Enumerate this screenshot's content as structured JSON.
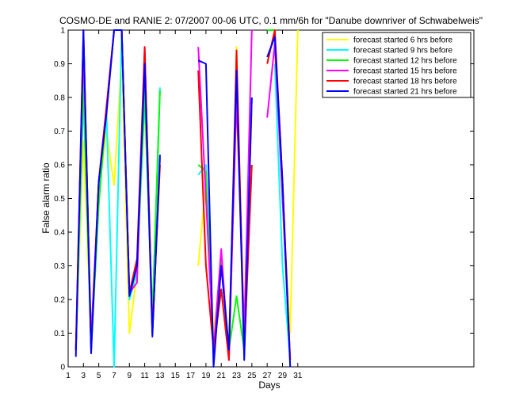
{
  "chart_data": {
    "type": "line",
    "title": "COSMO-DE and RANIE 2: 07/2007 00-06 UTC, 0.1 mm/6h for \"Danube downriver of Schwabelweis\"",
    "xlabel": "Days",
    "ylabel": "False alarm ratio",
    "xlim": [
      1,
      54
    ],
    "ylim": [
      0,
      1
    ],
    "xticks": [
      1,
      3,
      5,
      7,
      9,
      11,
      13,
      15,
      17,
      19,
      21,
      23,
      25,
      27,
      29,
      31
    ],
    "yticks": [
      0,
      0.1,
      0.2,
      0.3,
      0.4,
      0.5,
      0.6,
      0.7,
      0.8,
      0.9,
      1
    ],
    "grid": false,
    "legend_position": "top-right",
    "series": [
      {
        "name": "forecast started 6 hrs before",
        "color": "#ffff00",
        "x": [
          2,
          3,
          4,
          5,
          6,
          7,
          8,
          9,
          10,
          11,
          12,
          13,
          null,
          18,
          19,
          20,
          21,
          22,
          23,
          24,
          25,
          null,
          29,
          30,
          31
        ],
        "y": [
          0.05,
          0.67,
          0.1,
          0.52,
          0.7,
          0.54,
          0.92,
          0.1,
          0.28,
          0.78,
          0.12,
          0.6,
          null,
          0.3,
          0.55,
          0.1,
          0.32,
          0.05,
          0.95,
          0.08,
          0.75,
          null,
          0.5,
          0.1,
          1.0
        ]
      },
      {
        "name": "forecast started 9 hrs before",
        "color": "#00ffff",
        "x": [
          2,
          3,
          4,
          5,
          6,
          7,
          8,
          9,
          10,
          11,
          12,
          13,
          null,
          18,
          19,
          20,
          21,
          22,
          23,
          24,
          25,
          null,
          28,
          29,
          30
        ],
        "y": [
          0.05,
          0.8,
          0.1,
          0.5,
          0.76,
          0.0,
          1.0,
          0.2,
          0.28,
          0.8,
          0.15,
          0.83,
          null,
          0.57,
          0.6,
          0.05,
          0.3,
          0.05,
          0.9,
          0.07,
          0.8,
          null,
          0.9,
          0.3,
          0.02
        ]
      },
      {
        "name": "forecast started 12 hrs before",
        "color": "#00ff00",
        "x": [
          2,
          3,
          4,
          5,
          6,
          7,
          8,
          9,
          10,
          11,
          12,
          13,
          null,
          18,
          19,
          20,
          21,
          22,
          23,
          24,
          25,
          null,
          27,
          28,
          29,
          30
        ],
        "y": [
          0.05,
          0.85,
          0.05,
          0.48,
          0.76,
          1.0,
          1.0,
          0.22,
          0.3,
          0.82,
          0.15,
          0.82,
          null,
          0.6,
          0.58,
          0.05,
          0.32,
          0.05,
          0.21,
          0.05,
          0.8,
          null,
          1.0,
          1.0,
          0.5,
          0.02
        ]
      },
      {
        "name": "forecast started 15 hrs before",
        "color": "#ff00ff",
        "x": [
          2,
          3,
          4,
          5,
          6,
          7,
          8,
          9,
          10,
          11,
          12,
          13,
          null,
          18,
          19,
          20,
          21,
          22,
          23,
          24,
          25,
          null,
          27,
          28,
          29,
          30
        ],
        "y": [
          0.05,
          0.95,
          0.08,
          0.55,
          0.77,
          1.0,
          1.0,
          0.22,
          0.25,
          0.95,
          0.1,
          0.62,
          null,
          0.95,
          0.5,
          0.05,
          0.35,
          0.02,
          0.8,
          0.1,
          1.0,
          null,
          0.74,
          0.96,
          0.5,
          0.02
        ]
      },
      {
        "name": "forecast started 18 hrs before",
        "color": "#ff0000",
        "x": [
          2,
          3,
          4,
          5,
          6,
          7,
          8,
          9,
          10,
          11,
          12,
          13,
          null,
          18,
          19,
          20,
          21,
          22,
          23,
          24,
          25,
          null,
          27,
          28,
          29,
          30
        ],
        "y": [
          0.05,
          1.0,
          0.05,
          0.55,
          0.77,
          1.0,
          1.0,
          0.22,
          0.32,
          0.95,
          0.1,
          0.6,
          null,
          0.88,
          0.3,
          0.05,
          0.23,
          0.02,
          0.94,
          0.04,
          0.6,
          null,
          0.9,
          1.0,
          0.55,
          0.02
        ]
      },
      {
        "name": "forecast started 21 hrs before",
        "color": "#0000ff",
        "x": [
          2,
          3,
          4,
          5,
          6,
          7,
          8,
          9,
          10,
          11,
          12,
          13,
          null,
          18,
          19,
          20,
          21,
          22,
          23,
          24,
          25,
          null,
          27,
          28,
          29,
          30
        ],
        "y": [
          0.03,
          1.0,
          0.04,
          0.55,
          0.75,
          1.0,
          1.0,
          0.21,
          0.3,
          0.9,
          0.09,
          0.63,
          null,
          0.91,
          0.9,
          0.0,
          0.3,
          0.05,
          0.88,
          0.02,
          0.8,
          null,
          0.92,
          0.98,
          0.55,
          0.0
        ]
      }
    ]
  }
}
